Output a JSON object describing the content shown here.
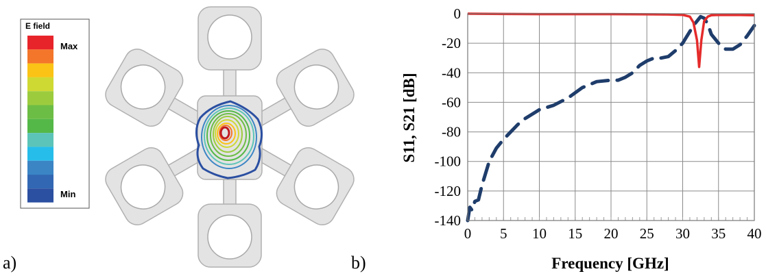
{
  "panels": {
    "a_label": "a)",
    "b_label": "b)"
  },
  "legend": {
    "title": "E field",
    "max_label": "Max",
    "min_label": "Min",
    "colors": [
      "#e8242b",
      "#f4762a",
      "#fbc315",
      "#cfd934",
      "#9ccc3e",
      "#6cbd45",
      "#54b848",
      "#5cc4b8",
      "#27bdea",
      "#3b85c5",
      "#3268b3",
      "#2b4fa1"
    ]
  },
  "chart_data": {
    "type": "line",
    "xlabel": "Frequency [GHz]",
    "ylabel": "S11, S21 [dB]",
    "xlim": [
      0,
      40
    ],
    "ylim": [
      -140,
      0
    ],
    "xticks": [
      0,
      5,
      10,
      15,
      20,
      25,
      30,
      35,
      40
    ],
    "yticks": [
      0,
      -20,
      -40,
      -60,
      -80,
      -100,
      -120,
      -140
    ],
    "grid": true,
    "series": [
      {
        "color": "#1f3d6b",
        "style": "dashed",
        "x": [
          0,
          0.3,
          0.6,
          1.0,
          1.5,
          2.0,
          3,
          4,
          5,
          6,
          7,
          8,
          9,
          10,
          12,
          14,
          16,
          18,
          20,
          21,
          22,
          23,
          24,
          25,
          26,
          27,
          28,
          29,
          30,
          30.5,
          31,
          31.5,
          32,
          32.5,
          33,
          33.5,
          34,
          35,
          36,
          37,
          38,
          39,
          40
        ],
        "y": [
          -140,
          -131,
          -133,
          -127,
          -126,
          -116,
          -100,
          -91,
          -85,
          -80,
          -75,
          -71,
          -68,
          -65,
          -62,
          -57,
          -50,
          -46,
          -45,
          -45,
          -43,
          -40,
          -35,
          -32,
          -30,
          -30,
          -29,
          -25,
          -20,
          -16,
          -12,
          -8,
          -5,
          -2,
          -3,
          -7,
          -14,
          -20,
          -24,
          -24,
          -21,
          -15,
          -8
        ]
      },
      {
        "color": "#e52b2b",
        "style": "solid",
        "x": [
          0,
          5,
          10,
          15,
          20,
          25,
          28,
          30,
          31,
          31.5,
          32,
          32.3,
          32.6,
          33,
          33.5,
          34,
          35,
          38,
          40
        ],
        "y": [
          0,
          -0.2,
          -0.3,
          -0.3,
          -0.3,
          -0.4,
          -0.5,
          -0.8,
          -2,
          -6,
          -18,
          -36,
          -18,
          -5,
          -2,
          -1,
          -0.8,
          -0.9,
          -1
        ]
      }
    ]
  }
}
